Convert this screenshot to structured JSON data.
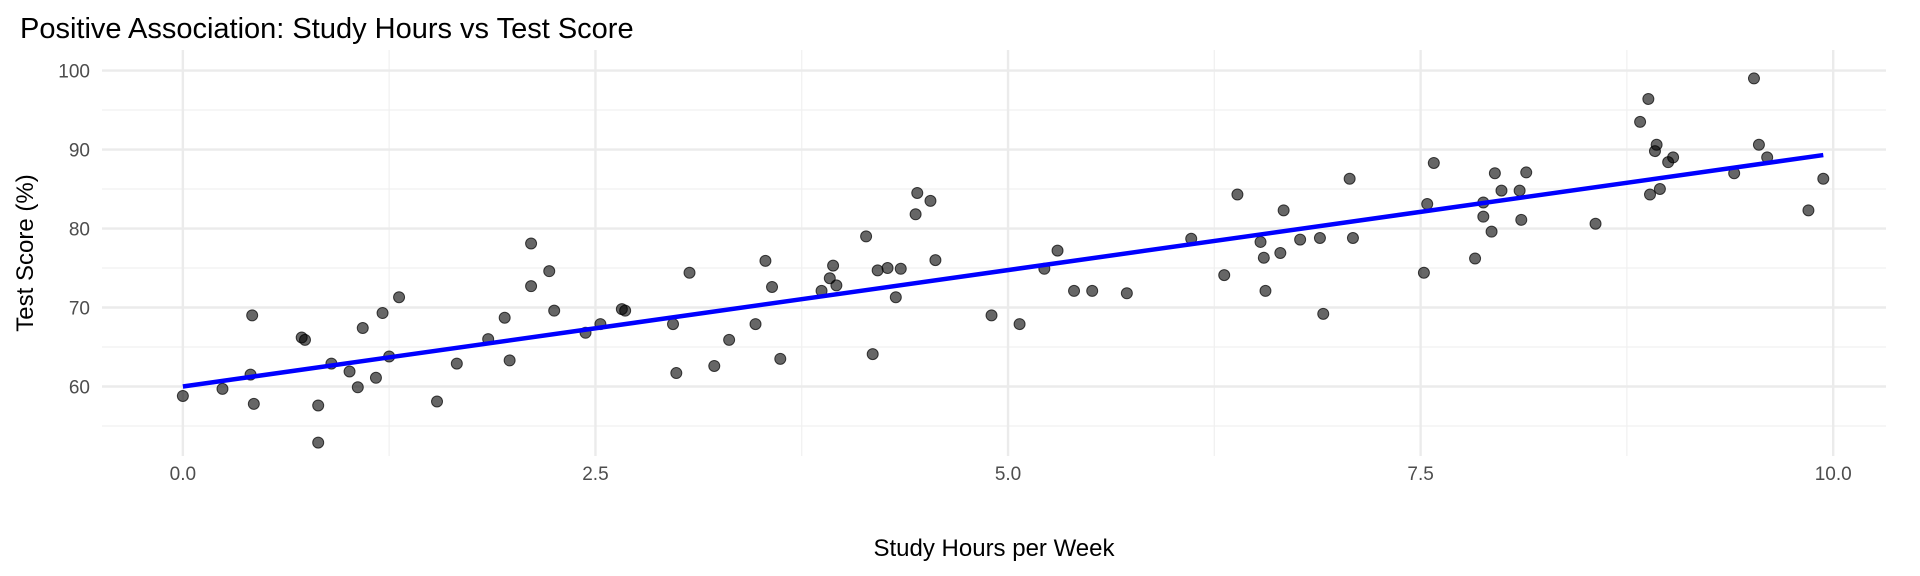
{
  "chart_data": {
    "type": "scatter",
    "title": "Positive Association: Study Hours vs Test Score",
    "xlabel": "Study Hours per Week",
    "ylabel": "Test Score (%)",
    "xlim": [
      -0.49,
      10.32
    ],
    "ylim": [
      51.2,
      102.6
    ],
    "x_ticks": [
      0,
      2.5,
      5,
      7.5,
      10
    ],
    "x_tick_labels": [
      "0.0",
      "2.5",
      "5.0",
      "7.5",
      "10.0"
    ],
    "y_ticks": [
      60,
      70,
      80,
      90,
      100
    ],
    "y_tick_labels": [
      "60",
      "70",
      "80",
      "90",
      "100"
    ],
    "grid": true,
    "point_color": "#000000",
    "point_opacity": 0.6,
    "line_color": "#0000ff",
    "trend_line": {
      "x": [
        0,
        9.94
      ],
      "y": [
        60.0,
        89.3
      ]
    },
    "points": [
      [
        0.0,
        58.8
      ],
      [
        0.24,
        59.7
      ],
      [
        0.41,
        61.5
      ],
      [
        0.42,
        69.0
      ],
      [
        0.43,
        57.8
      ],
      [
        0.72,
        66.2
      ],
      [
        0.74,
        65.9
      ],
      [
        0.82,
        57.6
      ],
      [
        0.82,
        52.9
      ],
      [
        0.9,
        62.9
      ],
      [
        1.01,
        61.9
      ],
      [
        1.06,
        59.9
      ],
      [
        1.09,
        67.4
      ],
      [
        1.17,
        61.1
      ],
      [
        1.21,
        69.3
      ],
      [
        1.25,
        63.8
      ],
      [
        1.31,
        71.3
      ],
      [
        1.54,
        58.1
      ],
      [
        1.66,
        62.9
      ],
      [
        1.85,
        66.0
      ],
      [
        1.95,
        68.7
      ],
      [
        1.98,
        63.3
      ],
      [
        2.11,
        72.7
      ],
      [
        2.11,
        78.1
      ],
      [
        2.22,
        74.6
      ],
      [
        2.25,
        69.6
      ],
      [
        2.44,
        66.8
      ],
      [
        2.53,
        67.9
      ],
      [
        2.66,
        69.8
      ],
      [
        2.68,
        69.6
      ],
      [
        2.97,
        67.9
      ],
      [
        2.99,
        61.7
      ],
      [
        3.07,
        74.4
      ],
      [
        3.22,
        62.6
      ],
      [
        3.31,
        65.9
      ],
      [
        3.47,
        67.9
      ],
      [
        3.53,
        75.9
      ],
      [
        3.57,
        72.6
      ],
      [
        3.62,
        63.5
      ],
      [
        3.87,
        72.1
      ],
      [
        3.92,
        73.7
      ],
      [
        3.94,
        75.3
      ],
      [
        3.96,
        72.8
      ],
      [
        4.14,
        79.0
      ],
      [
        4.18,
        64.1
      ],
      [
        4.21,
        74.7
      ],
      [
        4.27,
        75.0
      ],
      [
        4.32,
        71.3
      ],
      [
        4.35,
        74.9
      ],
      [
        4.44,
        81.8
      ],
      [
        4.45,
        84.5
      ],
      [
        4.53,
        83.5
      ],
      [
        4.56,
        76.0
      ],
      [
        4.9,
        69.0
      ],
      [
        5.07,
        67.9
      ],
      [
        5.22,
        74.9
      ],
      [
        5.3,
        77.2
      ],
      [
        5.4,
        72.1
      ],
      [
        5.51,
        72.1
      ],
      [
        5.72,
        71.8
      ],
      [
        6.11,
        78.7
      ],
      [
        6.31,
        74.1
      ],
      [
        6.39,
        84.3
      ],
      [
        6.53,
        78.3
      ],
      [
        6.55,
        76.3
      ],
      [
        6.56,
        72.1
      ],
      [
        6.65,
        76.9
      ],
      [
        6.67,
        82.3
      ],
      [
        6.77,
        78.6
      ],
      [
        6.89,
        78.8
      ],
      [
        6.91,
        69.2
      ],
      [
        7.07,
        86.3
      ],
      [
        7.09,
        78.8
      ],
      [
        7.52,
        74.4
      ],
      [
        7.54,
        83.1
      ],
      [
        7.58,
        88.3
      ],
      [
        7.83,
        76.2
      ],
      [
        7.88,
        83.3
      ],
      [
        7.88,
        81.5
      ],
      [
        7.93,
        79.6
      ],
      [
        7.95,
        87.0
      ],
      [
        7.99,
        84.8
      ],
      [
        8.1,
        84.8
      ],
      [
        8.11,
        81.1
      ],
      [
        8.14,
        87.1
      ],
      [
        8.56,
        80.6
      ],
      [
        8.83,
        93.5
      ],
      [
        8.88,
        96.4
      ],
      [
        8.89,
        84.3
      ],
      [
        8.92,
        89.8
      ],
      [
        8.93,
        90.6
      ],
      [
        8.95,
        85.0
      ],
      [
        9.0,
        88.4
      ],
      [
        9.03,
        89.0
      ],
      [
        9.4,
        87.0
      ],
      [
        9.52,
        99.0
      ],
      [
        9.55,
        90.6
      ],
      [
        9.6,
        89.0
      ],
      [
        9.85,
        82.3
      ],
      [
        9.94,
        86.3
      ]
    ]
  }
}
